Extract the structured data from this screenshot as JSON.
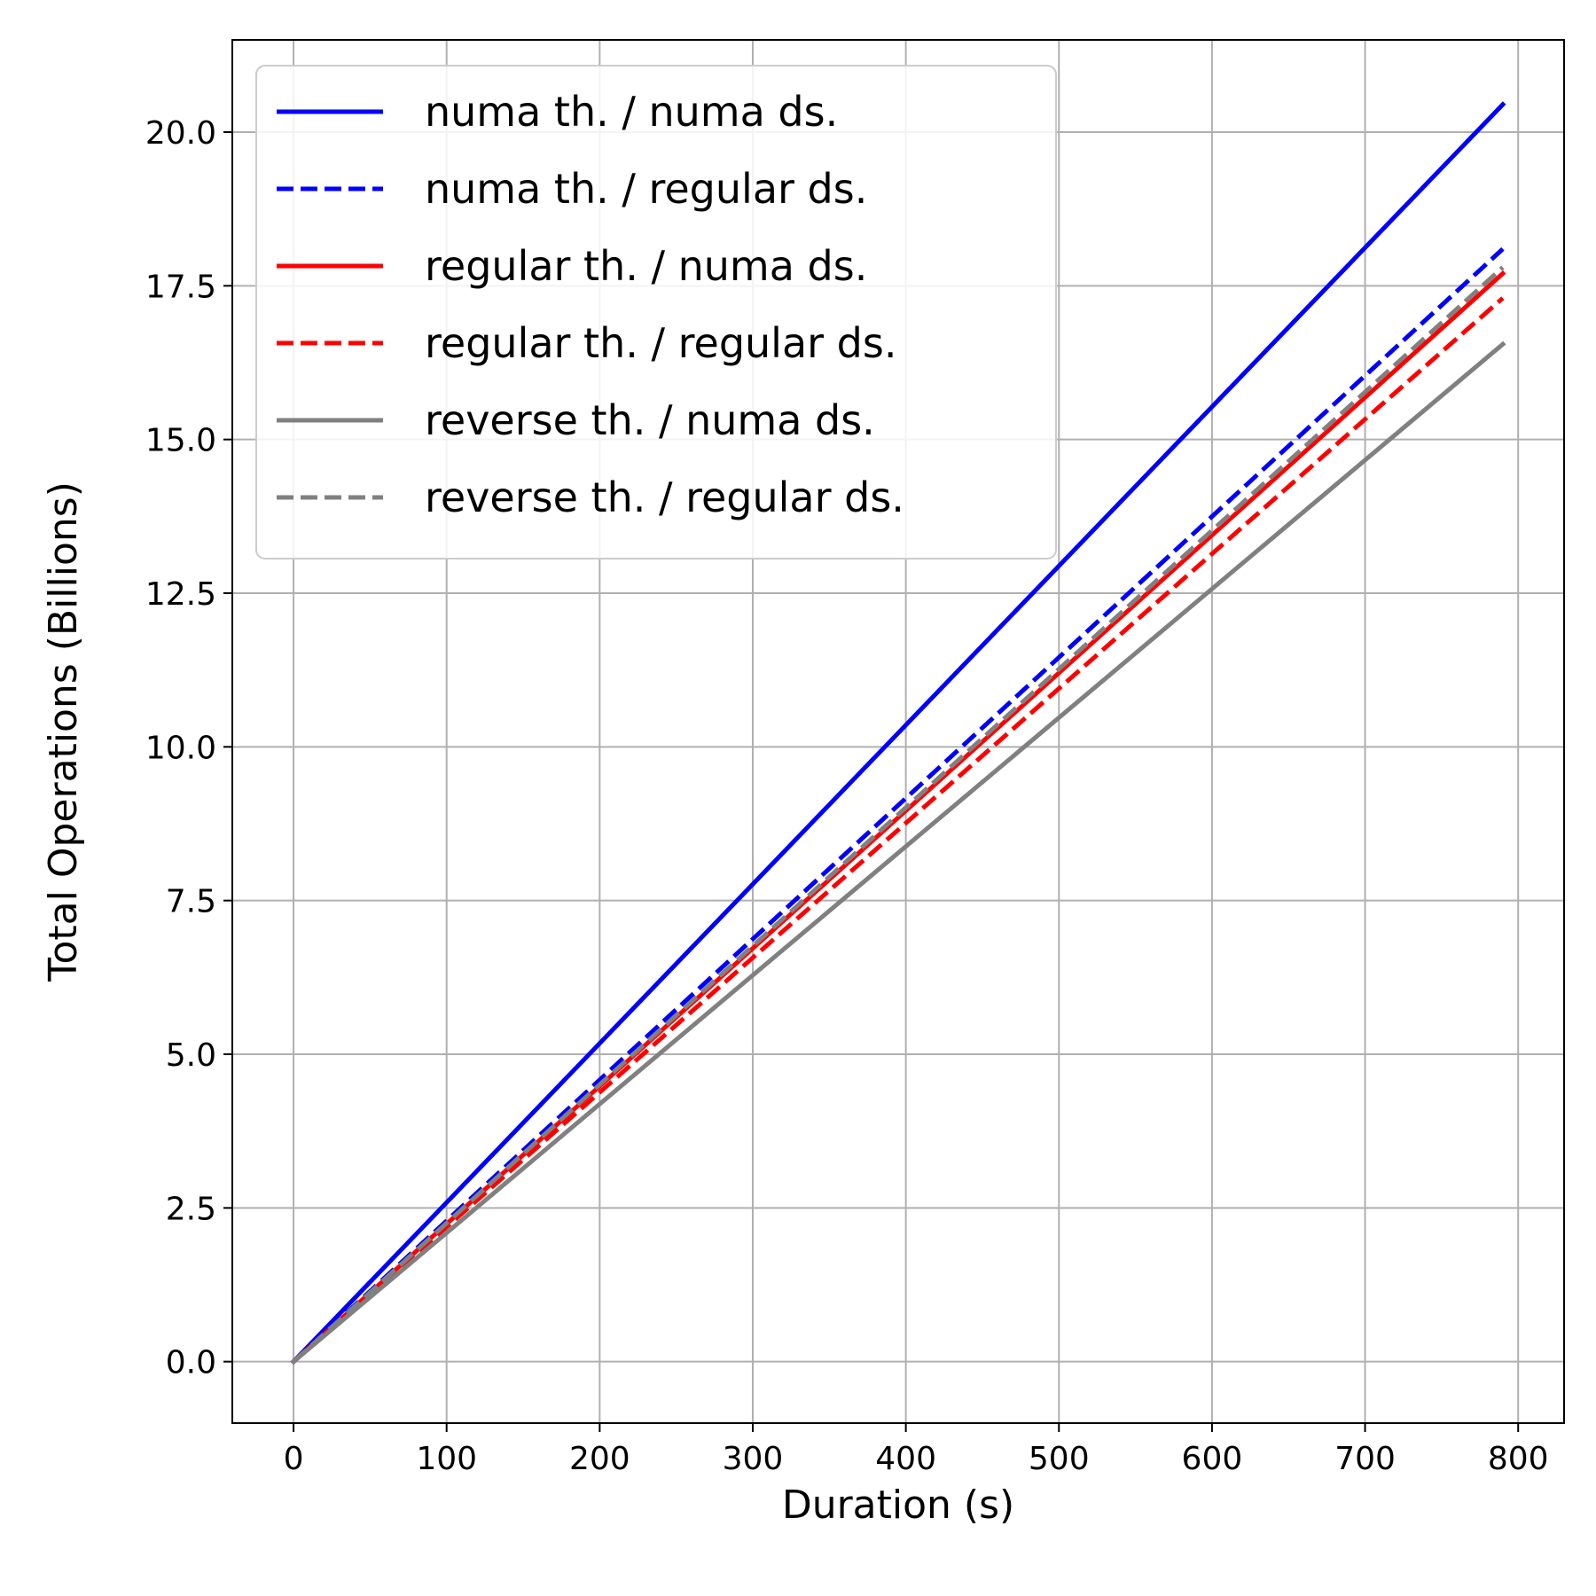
{
  "chart_data": {
    "type": "line",
    "title": "",
    "xlabel": "Duration (s)",
    "ylabel": "Total Operations (Billions)",
    "xlim": [
      -40,
      830
    ],
    "ylim": [
      -1.0,
      21.5
    ],
    "xticks": [
      0,
      100,
      200,
      300,
      400,
      500,
      600,
      700,
      800
    ],
    "xtick_labels": [
      "0",
      "100",
      "200",
      "300",
      "400",
      "500",
      "600",
      "700",
      "800"
    ],
    "yticks": [
      0,
      2.5,
      5,
      7.5,
      10,
      12.5,
      15,
      17.5,
      20
    ],
    "ytick_labels": [
      "0.0",
      "2.5",
      "5.0",
      "7.5",
      "10.0",
      "12.5",
      "15.0",
      "17.5",
      "20.0"
    ],
    "grid": true,
    "legend_position": "upper-left",
    "series": [
      {
        "name": "numa th. / numa ds.",
        "color": "#0000ff",
        "dash": "solid",
        "x": [
          0,
          790
        ],
        "y": [
          0,
          20.45
        ]
      },
      {
        "name": "numa th. / regular ds.",
        "color": "#0000ff",
        "dash": "dashed",
        "x": [
          0,
          790
        ],
        "y": [
          0,
          18.1
        ]
      },
      {
        "name": "regular th. / numa ds.",
        "color": "#ff0000",
        "dash": "solid",
        "x": [
          0,
          790
        ],
        "y": [
          0,
          17.7
        ]
      },
      {
        "name": "regular th. / regular ds.",
        "color": "#ff0000",
        "dash": "dashed",
        "x": [
          0,
          790
        ],
        "y": [
          0,
          17.3
        ]
      },
      {
        "name": "reverse th. / numa ds.",
        "color": "#808080",
        "dash": "solid",
        "x": [
          0,
          790
        ],
        "y": [
          0,
          16.55
        ]
      },
      {
        "name": "reverse th. / regular ds.",
        "color": "#808080",
        "dash": "dashed",
        "x": [
          0,
          790
        ],
        "y": [
          0,
          17.8
        ]
      }
    ]
  }
}
